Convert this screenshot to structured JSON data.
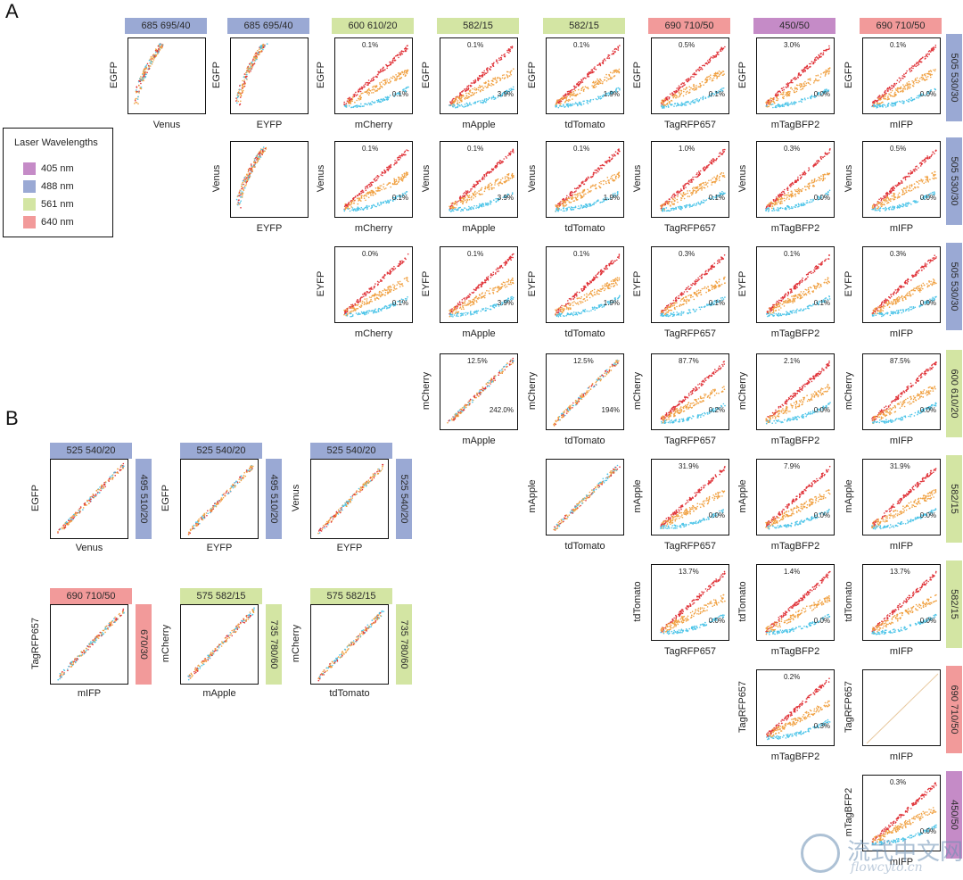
{
  "panel_a_label": "A",
  "panel_b_label": "B",
  "colors": {
    "blue_header": "#9aa9d4",
    "green_header": "#d3e5a3",
    "red_header": "#f29a9a",
    "purple_header": "#c58bc7",
    "red_pts": "#e0343a",
    "orange_pts": "#f0a040",
    "cyan_pts": "#4cc4e8"
  },
  "legend": {
    "title": "Laser Wavelengths",
    "items": [
      {
        "label": "405 nm",
        "color": "#c58bc7"
      },
      {
        "label": "488 nm",
        "color": "#9aa9d4"
      },
      {
        "label": "561 nm",
        "color": "#d3e5a3"
      },
      {
        "label": "640 nm",
        "color": "#f29a9a"
      }
    ]
  },
  "panel_a": {
    "col_headers": [
      {
        "text": "685 695/40",
        "color": "#9aa9d4"
      },
      {
        "text": "685 695/40",
        "color": "#9aa9d4"
      },
      {
        "text": "600 610/20",
        "color": "#d3e5a3"
      },
      {
        "text": "582/15",
        "color": "#d3e5a3"
      },
      {
        "text": "582/15",
        "color": "#d3e5a3"
      },
      {
        "text": "690 710/50",
        "color": "#f29a9a"
      },
      {
        "text": "450/50",
        "color": "#c58bc7"
      },
      {
        "text": "690 710/50",
        "color": "#f29a9a"
      }
    ],
    "row_headers": [
      {
        "text": "505 530/30",
        "color": "#9aa9d4"
      },
      {
        "text": "505 530/30",
        "color": "#9aa9d4"
      },
      {
        "text": "505 530/30",
        "color": "#9aa9d4"
      },
      {
        "text": "600 610/20",
        "color": "#d3e5a3"
      },
      {
        "text": "582/15",
        "color": "#d3e5a3"
      },
      {
        "text": "582/15",
        "color": "#d3e5a3"
      },
      {
        "text": "690 710/50",
        "color": "#f29a9a"
      },
      {
        "text": "450/50",
        "color": "#c58bc7"
      }
    ],
    "x_labels": [
      "Venus",
      "EYFP",
      "mCherry",
      "mApple",
      "tdTomato",
      "TagRFP657",
      "mTagBFP2",
      "mIFP"
    ],
    "y_labels": [
      "EGFP",
      "Venus",
      "EYFP",
      "mCherry",
      "mApple",
      "tdTomato",
      "TagRFP657",
      "mTagBFP2"
    ],
    "pct": [
      [
        "",
        "",
        "0.1%|0.1%",
        "0.1%|3.9%",
        "0.1%|1.9%",
        "0.5%|0.1%",
        "3.0%|0.0%",
        "0.1%|0.0%"
      ],
      [
        "",
        "",
        "0.1%|0.1%",
        "0.1%|3.9%",
        "0.1%|1.9%",
        "1.0%|0.1%",
        "0.3%|0.0%",
        "0.5%|0.0%"
      ],
      [
        "",
        "",
        "0.0%|0.1%",
        "0.1%|3.9%",
        "0.1%|1.9%",
        "0.3%|0.1%",
        "0.1%|0.1%",
        "0.3%|0.0%"
      ],
      [
        "",
        "",
        "",
        "12.5%|242.0%",
        "12.5%|194%",
        "87.7%|0.2%",
        "2.1%|0.0%",
        "87.5%|0.0%"
      ],
      [
        "",
        "",
        "",
        "",
        "",
        "31.9%|0.0%",
        "7.9%|0.0%",
        "31.9%|0.0%"
      ],
      [
        "",
        "",
        "",
        "",
        "",
        "13.7%|0.0%",
        "1.4%|0.0%",
        "13.7%|0.0%"
      ],
      [
        "",
        "",
        "",
        "",
        "",
        "",
        "0.2%|0.3%",
        ""
      ],
      [
        "",
        "",
        "",
        "",
        "",
        "",
        "",
        "0.3%|0.0%"
      ]
    ]
  },
  "panel_b": {
    "plots": [
      {
        "top": "525 540/20",
        "top_color": "#9aa9d4",
        "side": "495 510/20",
        "side_color": "#9aa9d4",
        "x": "Venus",
        "y": "EGFP"
      },
      {
        "top": "525 540/20",
        "top_color": "#9aa9d4",
        "side": "495 510/20",
        "side_color": "#9aa9d4",
        "x": "EYFP",
        "y": "EGFP"
      },
      {
        "top": "525 540/20",
        "top_color": "#9aa9d4",
        "side": "525 540/20",
        "side_color": "#9aa9d4",
        "x": "EYFP",
        "y": "Venus"
      },
      {
        "top": "690 710/50",
        "top_color": "#f29a9a",
        "side": "670/30",
        "side_color": "#f29a9a",
        "x": "mIFP",
        "y": "TagRFP657"
      },
      {
        "top": "575 582/15",
        "top_color": "#d3e5a3",
        "side": "735 780/60",
        "side_color": "#d3e5a3",
        "x": "mApple",
        "y": "mCherry"
      },
      {
        "top": "575 582/15",
        "top_color": "#d3e5a3",
        "side": "735 780/60",
        "side_color": "#d3e5a3",
        "x": "tdTomato",
        "y": "mCherry"
      }
    ]
  },
  "watermark": {
    "text": "流式中文网",
    "sub": "flowcyto.cn"
  },
  "chart_data": {
    "type": "scatter",
    "panels": [
      {
        "x": "Venus",
        "y": "EGFP",
        "channels": "685 695/40 vs 505 530/30"
      },
      {
        "x": "EYFP",
        "y": "EGFP"
      },
      {
        "x": "mCherry",
        "y": "EGFP",
        "pct": [
          "0.1%",
          "0.1%"
        ]
      },
      {
        "x": "mApple",
        "y": "EGFP",
        "pct": [
          "0.1%",
          "3.9%"
        ]
      },
      {
        "x": "tdTomato",
        "y": "EGFP",
        "pct": [
          "0.1%",
          "1.9%"
        ]
      },
      {
        "x": "TagRFP657",
        "y": "EGFP",
        "pct": [
          "0.5%",
          "0.1%"
        ]
      },
      {
        "x": "mTagBFP2",
        "y": "EGFP",
        "pct": [
          "3.0%",
          "0.0%"
        ]
      },
      {
        "x": "mIFP",
        "y": "EGFP",
        "pct": [
          "0.1%",
          "0.0%"
        ]
      }
    ]
  }
}
